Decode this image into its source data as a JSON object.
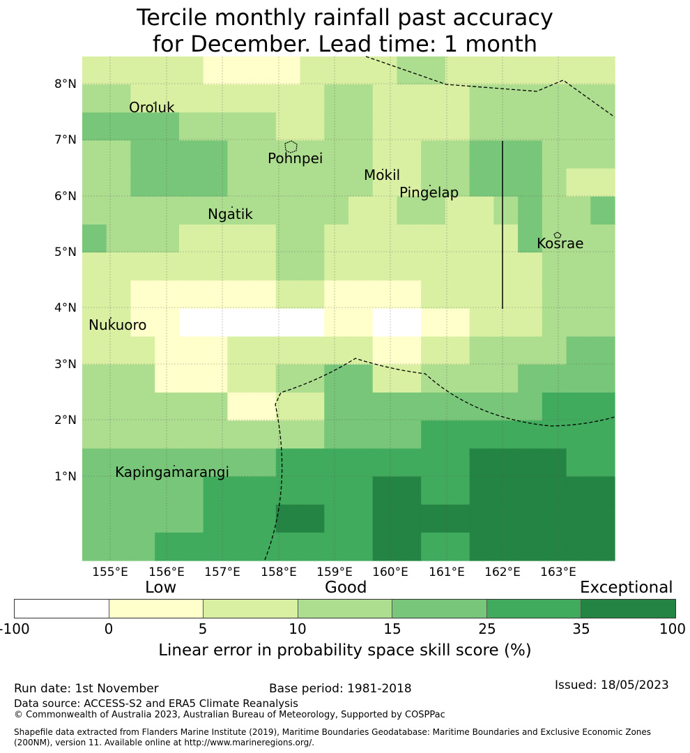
{
  "title": {
    "line1": "Tercile monthly rainfall past accuracy",
    "line2": "for December. Lead time: 1 month"
  },
  "map": {
    "lat_ticks": [
      "8°N",
      "7°N",
      "6°N",
      "5°N",
      "4°N",
      "3°N",
      "2°N",
      "1°N"
    ],
    "lon_ticks": [
      "155°E",
      "156°E",
      "157°E",
      "158°E",
      "159°E",
      "160°E",
      "161°E",
      "162°E",
      "163°E"
    ],
    "places": [
      {
        "name": "Oroluk"
      },
      {
        "name": "Pohnpei"
      },
      {
        "name": "Mokil"
      },
      {
        "name": "Pingelap"
      },
      {
        "name": "Ngatik"
      },
      {
        "name": "Kosrae"
      },
      {
        "name": "Nukuoro"
      },
      {
        "name": "Kapingamarangi"
      }
    ],
    "grid_levels": [
      [
        2,
        2,
        2,
        2,
        2,
        1,
        1,
        1,
        1,
        2,
        2,
        2,
        2,
        3,
        3,
        2,
        2,
        2,
        2,
        2,
        2,
        2
      ],
      [
        3,
        3,
        2,
        2,
        2,
        2,
        2,
        2,
        2,
        2,
        3,
        3,
        2,
        2,
        2,
        2,
        3,
        3,
        3,
        3,
        3,
        3
      ],
      [
        4,
        4,
        4,
        4,
        3,
        3,
        3,
        3,
        2,
        2,
        3,
        3,
        2,
        2,
        2,
        2,
        3,
        3,
        3,
        3,
        3,
        3
      ],
      [
        3,
        3,
        4,
        4,
        4,
        4,
        3,
        3,
        3,
        3,
        3,
        3,
        2,
        2,
        3,
        3,
        4,
        4,
        4,
        3,
        3,
        3
      ],
      [
        3,
        3,
        4,
        4,
        4,
        4,
        3,
        3,
        3,
        3,
        3,
        3,
        2,
        2,
        3,
        3,
        4,
        4,
        4,
        3,
        2,
        2
      ],
      [
        3,
        3,
        3,
        3,
        3,
        3,
        3,
        3,
        3,
        3,
        3,
        2,
        2,
        3,
        3,
        2,
        2,
        3,
        4,
        3,
        3,
        4
      ],
      [
        4,
        3,
        3,
        3,
        2,
        2,
        2,
        2,
        3,
        3,
        2,
        2,
        2,
        2,
        2,
        2,
        2,
        2,
        4,
        3,
        3,
        3
      ],
      [
        2,
        2,
        2,
        2,
        2,
        2,
        2,
        2,
        3,
        3,
        2,
        2,
        2,
        2,
        2,
        2,
        2,
        2,
        2,
        3,
        3,
        3
      ],
      [
        2,
        2,
        1,
        1,
        1,
        1,
        1,
        1,
        2,
        2,
        1,
        1,
        1,
        1,
        2,
        2,
        2,
        2,
        2,
        3,
        3,
        3
      ],
      [
        2,
        2,
        1,
        1,
        0,
        0,
        0,
        0,
        0,
        0,
        1,
        1,
        0,
        0,
        1,
        1,
        2,
        2,
        2,
        3,
        3,
        3
      ],
      [
        2,
        2,
        2,
        1,
        1,
        1,
        2,
        2,
        2,
        2,
        2,
        2,
        1,
        1,
        2,
        2,
        3,
        3,
        3,
        3,
        4,
        4
      ],
      [
        3,
        3,
        3,
        1,
        1,
        1,
        2,
        2,
        3,
        3,
        4,
        4,
        2,
        2,
        3,
        3,
        3,
        3,
        4,
        4,
        4,
        4
      ],
      [
        3,
        3,
        3,
        3,
        3,
        3,
        1,
        1,
        2,
        2,
        4,
        4,
        4,
        4,
        4,
        4,
        4,
        4,
        4,
        5,
        5,
        5
      ],
      [
        3,
        3,
        3,
        3,
        3,
        3,
        3,
        3,
        3,
        3,
        4,
        4,
        4,
        4,
        5,
        5,
        5,
        5,
        5,
        5,
        5,
        5
      ],
      [
        4,
        4,
        4,
        4,
        4,
        4,
        4,
        4,
        5,
        5,
        5,
        5,
        5,
        5,
        5,
        5,
        6,
        6,
        6,
        6,
        5,
        5
      ],
      [
        4,
        4,
        4,
        4,
        4,
        5,
        5,
        5,
        5,
        5,
        5,
        5,
        6,
        6,
        5,
        5,
        6,
        6,
        6,
        6,
        6,
        6
      ],
      [
        4,
        4,
        4,
        4,
        4,
        5,
        5,
        5,
        6,
        6,
        5,
        5,
        6,
        6,
        6,
        6,
        6,
        6,
        6,
        6,
        6,
        6
      ],
      [
        4,
        4,
        4,
        5,
        5,
        5,
        5,
        5,
        5,
        5,
        5,
        5,
        6,
        6,
        5,
        5,
        6,
        6,
        6,
        6,
        6,
        6
      ]
    ]
  },
  "colorbar": {
    "categories": {
      "low": "Low",
      "good": "Good",
      "exceptional": "Exceptional"
    },
    "ticks": [
      "-100",
      "0",
      "5",
      "10",
      "15",
      "25",
      "35",
      "100"
    ],
    "colors": [
      "#ffffff",
      "#ffffcc",
      "#d9f0a3",
      "#addd8e",
      "#78c679",
      "#41ab5d",
      "#238443"
    ],
    "label": "Linear error in probability space skill score (%)"
  },
  "footer": {
    "run_date": "Run date: 1st November",
    "base_period": "Base period: 1981-2018",
    "issued": "Issued: 18/05/2023",
    "data_source": "Data source: ACCESS-S2 and ERA5 Climate Reanalysis",
    "copyright": "© Commonwealth of Australia 2023, Australian Bureau of Meteorology, Supported by COSPPac",
    "shapefile": "Shapefile data extracted from Flanders Marine Institute (2019), Maritime Boundaries Geodatabase: Maritime Boundaries and Exclusive Economic Zones (200NM), version 11. Available online at http://www.marineregions.org/."
  }
}
